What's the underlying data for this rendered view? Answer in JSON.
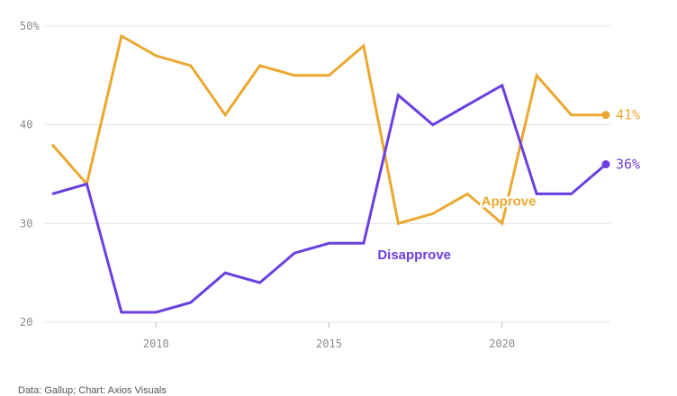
{
  "colors": {
    "approve": "#eba830",
    "disapprove": "#6b3fe0",
    "grid": "#e3e3e3",
    "tick": "#8a8a8a"
  },
  "chart_data": {
    "type": "line",
    "title": "",
    "xlabel": "",
    "ylabel": "",
    "xlim": [
      2007,
      2023
    ],
    "ylim": [
      20,
      50
    ],
    "y_ticks": [
      20,
      30,
      40,
      50
    ],
    "y_tick_labels": [
      "20",
      "30",
      "40",
      "50%"
    ],
    "x_ticks": [
      2010,
      2015,
      2020
    ],
    "x_tick_labels": [
      "2010",
      "2015",
      "2020"
    ],
    "grid": "horizontal",
    "x": [
      2007,
      2008,
      2009,
      2010,
      2011,
      2012,
      2013,
      2014,
      2015,
      2016,
      2017,
      2018,
      2019,
      2020,
      2021,
      2022,
      2023
    ],
    "series": [
      {
        "name": "Approve",
        "color": "#eba830",
        "values": [
          38,
          34,
          49,
          47,
          46,
          41,
          46,
          45,
          45,
          48,
          30,
          31,
          33,
          30,
          45,
          41,
          41
        ],
        "end_label": "41%",
        "label_anchor": {
          "x": 2019.4,
          "y": 31.8
        }
      },
      {
        "name": "Disapprove",
        "color": "#6b3fe0",
        "values": [
          33,
          34,
          21,
          21,
          22,
          25,
          24,
          27,
          28,
          28,
          43,
          40,
          42,
          44,
          33,
          33,
          36
        ],
        "end_label": "36%",
        "label_anchor": {
          "x": 2016.4,
          "y": 26.4
        }
      }
    ]
  },
  "footer": {
    "source": "Data: Gallup; Chart: Axios Visuals"
  }
}
